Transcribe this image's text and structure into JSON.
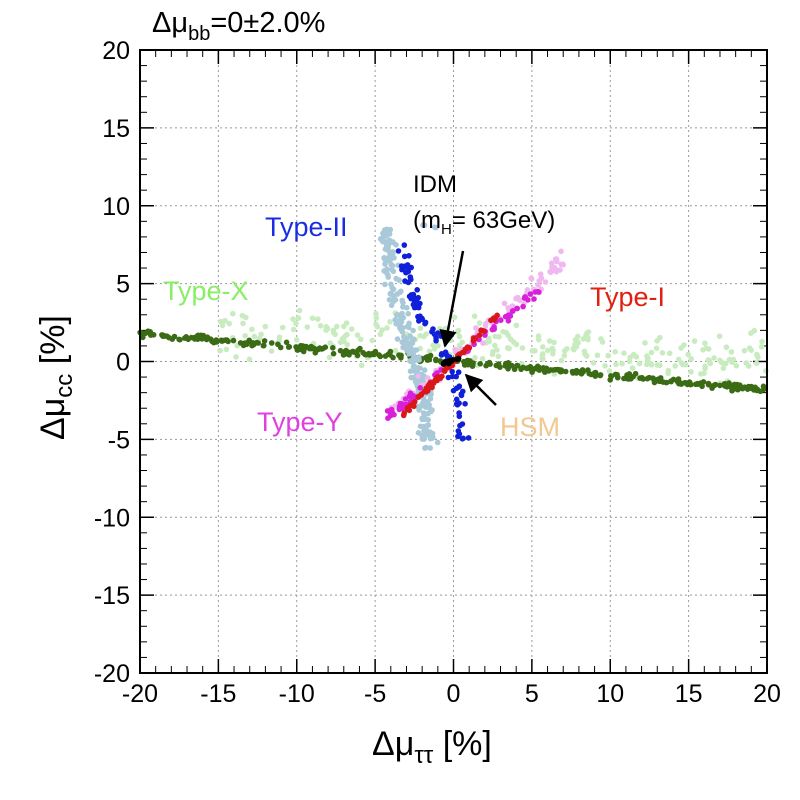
{
  "chart_data": {
    "type": "scatter",
    "title": {
      "prefix": "Δμ",
      "sub": "bb",
      "suffix": "=0±2.0%"
    },
    "xlabel": {
      "prefix": "Δμ",
      "sub": "ττ",
      "suffix": " [%]"
    },
    "ylabel": {
      "prefix": "Δμ",
      "sub": "cc",
      "suffix": " [%]"
    },
    "xlim": [
      -20,
      20
    ],
    "ylim": [
      -20,
      20
    ],
    "xticks": [
      -20,
      -15,
      -10,
      -5,
      0,
      5,
      10,
      15,
      20
    ],
    "yticks": [
      -20,
      -15,
      -10,
      -5,
      0,
      5,
      10,
      15,
      20
    ],
    "grid": true,
    "colors": {
      "typeX_light": "#c8ecc0",
      "typeX_dark": "#3b6b15",
      "typeII_light": "#a9c9d9",
      "typeII_dark": "#1020d8",
      "typeY_light": "#f0b8f0",
      "typeY_dark": "#d820d8",
      "typeI": "#d81818",
      "idm": "#000000",
      "label_typeII": "#1a2ee0",
      "label_typeX": "#88ee66",
      "label_typeI": "#e02010",
      "label_typeY": "#e040e0",
      "label_hsm": "#f0c890"
    },
    "series": [
      {
        "name": "Type-X (light)",
        "kind": "band",
        "slope": -0.05,
        "intercept": 1.2,
        "xrange": [
          -15,
          20
        ],
        "spread": 1.5,
        "count": 260,
        "color_key": "typeX_light"
      },
      {
        "name": "Type-X",
        "kind": "band",
        "slope": -0.09,
        "intercept": 0.0,
        "xrange": [
          -20,
          20
        ],
        "spread": 0.22,
        "count": 340,
        "color_key": "typeX_dark"
      },
      {
        "name": "Type-II (light)",
        "kind": "region",
        "x_of_y": [
          [
            8.5,
            -4.3
          ],
          [
            5,
            -3.8
          ],
          [
            2,
            -3.2
          ],
          [
            0,
            -2.4
          ],
          [
            -2,
            -2.0
          ],
          [
            -5.5,
            -1.6
          ]
        ],
        "xwidth": 1.0,
        "yrange": [
          -5.6,
          8.8
        ],
        "count": 230,
        "color_key": "typeII_light"
      },
      {
        "name": "Type-II",
        "kind": "region",
        "x_of_y": [
          [
            7.5,
            -3.3
          ],
          [
            5,
            -2.8
          ],
          [
            3,
            -2.1
          ],
          [
            1.5,
            -1.0
          ],
          [
            -2,
            0.4
          ],
          [
            -5,
            0.6
          ]
        ],
        "xwidth": 0.8,
        "yrange": [
          -5.0,
          7.5
        ],
        "count": 85,
        "color_key": "typeII_dark"
      },
      {
        "name": "Type-Y (light)",
        "kind": "band",
        "slope": 0.9,
        "intercept": 0.3,
        "xrange": [
          -4.5,
          7
        ],
        "spread": 0.8,
        "count": 90,
        "color_key": "typeY_light"
      },
      {
        "name": "Type-Y",
        "kind": "band",
        "slope": 0.85,
        "intercept": 0.0,
        "xrange": [
          -4.3,
          6
        ],
        "spread": 0.35,
        "count": 60,
        "color_key": "typeY_dark"
      },
      {
        "name": "Type-I",
        "kind": "band",
        "slope": 1.05,
        "intercept": 0.0,
        "xrange": [
          -3.2,
          2.8
        ],
        "spread": 0.22,
        "count": 70,
        "color_key": "typeI"
      },
      {
        "name": "IDM",
        "kind": "band",
        "slope": 0.3,
        "intercept": 0.05,
        "xrange": [
          -0.7,
          0.4
        ],
        "spread": 0.1,
        "count": 16,
        "color_key": "idm"
      }
    ],
    "annotations": [
      {
        "id": "idm",
        "line1": "IDM",
        "line2_prefix": "(m",
        "line2_sub": "H",
        "line2_suffix": "= 63GeV)"
      },
      {
        "id": "typeII",
        "text": "Type-II"
      },
      {
        "id": "typeX",
        "text": "Type-X"
      },
      {
        "id": "typeI",
        "text": "Type-I"
      },
      {
        "id": "typeY",
        "text": "Type-Y"
      },
      {
        "id": "hsm",
        "text": "HSM"
      }
    ]
  }
}
